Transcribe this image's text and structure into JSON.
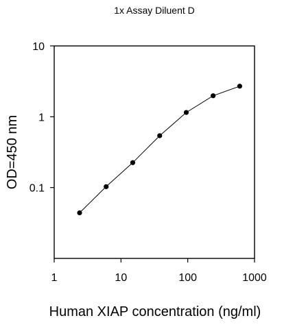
{
  "chart_data": {
    "type": "line",
    "title": "1x Assay Diluent D",
    "xlabel": "Human XIAP concentration (ng/ml)",
    "ylabel": "OD=450 nm",
    "xscale": "log",
    "yscale": "log",
    "xlim": [
      1,
      1000
    ],
    "ylim": [
      0.01,
      10
    ],
    "xticks": [
      1,
      10,
      100,
      1000
    ],
    "xtick_labels": [
      "1",
      "10",
      "100",
      "1000"
    ],
    "yticks": [
      0.1,
      1,
      10
    ],
    "ytick_labels": [
      "0.1",
      "1",
      "10"
    ],
    "grid": false,
    "series": [
      {
        "x": [
          2.4,
          6,
          15,
          38,
          95,
          240,
          600
        ],
        "y": [
          0.044,
          0.103,
          0.225,
          0.54,
          1.15,
          1.98,
          2.7
        ]
      }
    ]
  }
}
